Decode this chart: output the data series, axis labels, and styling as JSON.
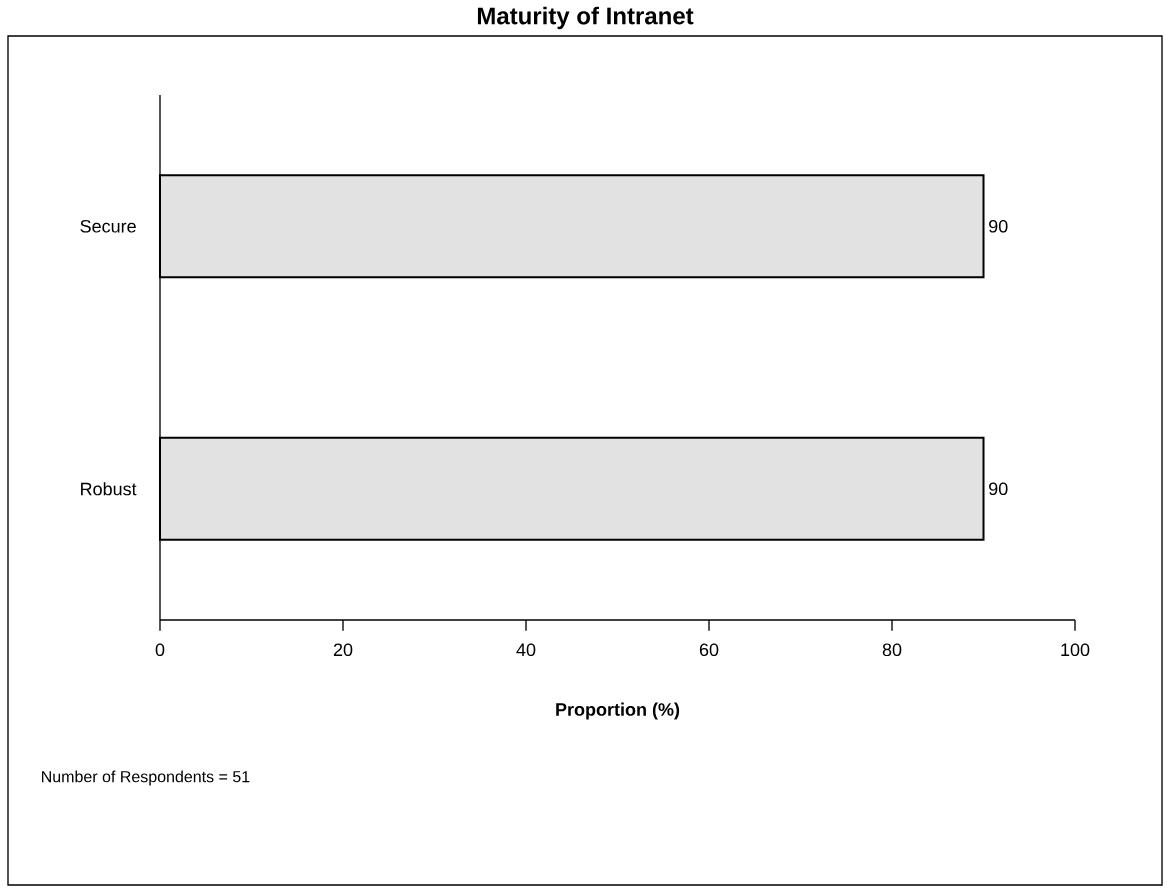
{
  "chart_data": {
    "type": "bar",
    "orientation": "horizontal",
    "title": "Maturity of Intranet",
    "xlabel": "Proportion (%)",
    "categories": [
      "Secure",
      "Robust"
    ],
    "values": [
      90,
      90
    ],
    "color": "#e2e2e2",
    "data_labels": true,
    "xlim": [
      0,
      100
    ],
    "xticks": [
      0,
      20,
      40,
      60,
      80,
      100
    ],
    "annotations": [
      "Number of Respondents = 51"
    ]
  }
}
